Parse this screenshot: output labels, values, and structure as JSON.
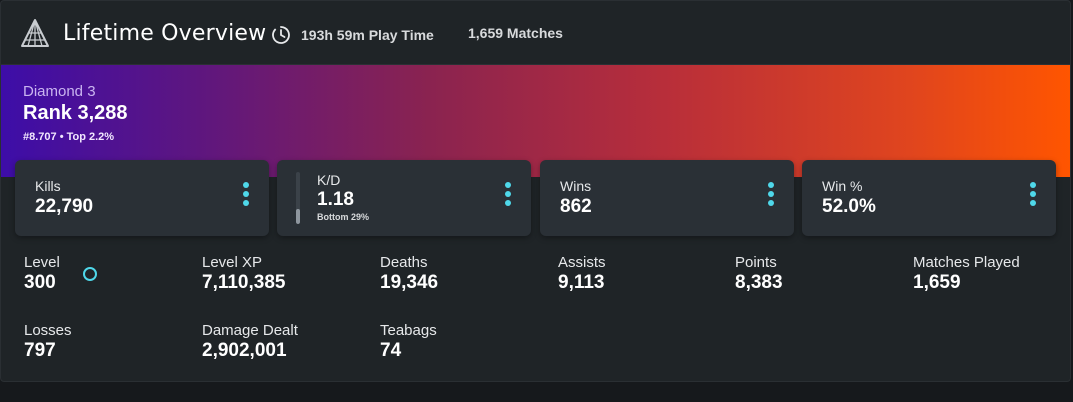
{
  "header": {
    "title": "Lifetime Overview",
    "play_time": "193h 59m Play Time",
    "matches": "1,659 Matches",
    "logo_icon": "pyramid-logo-icon",
    "clock_icon": "clock-icon"
  },
  "rank": {
    "tier": "Diamond 3",
    "value": "Rank 3,288",
    "sub": "#8.707 • Top 2.2%"
  },
  "stat_boxes": [
    {
      "label": "Kills",
      "value": "22,790"
    },
    {
      "label": "K/D",
      "value": "1.18",
      "note": "Bottom 29%",
      "percentile": 0.29
    },
    {
      "label": "Wins",
      "value": "862"
    },
    {
      "label": "Win %",
      "value": "52.0%"
    }
  ],
  "stats": [
    {
      "label": "Level",
      "value": "300"
    },
    {
      "label": "Level XP",
      "value": "7,110,385"
    },
    {
      "label": "Deaths",
      "value": "19,346"
    },
    {
      "label": "Assists",
      "value": "9,113"
    },
    {
      "label": "Points",
      "value": "8,383"
    },
    {
      "label": "Matches Played",
      "value": "1,659"
    },
    {
      "label": "Losses",
      "value": "797"
    },
    {
      "label": "Damage Dealt",
      "value": "2,902,001"
    },
    {
      "label": "Teabags",
      "value": "74"
    }
  ],
  "colors": {
    "accent": "#4fd8ea",
    "banner_start": "#3d0da8",
    "banner_end": "#ff5500",
    "card_bg": "#1f2427",
    "box_bg": "#2a3036"
  }
}
